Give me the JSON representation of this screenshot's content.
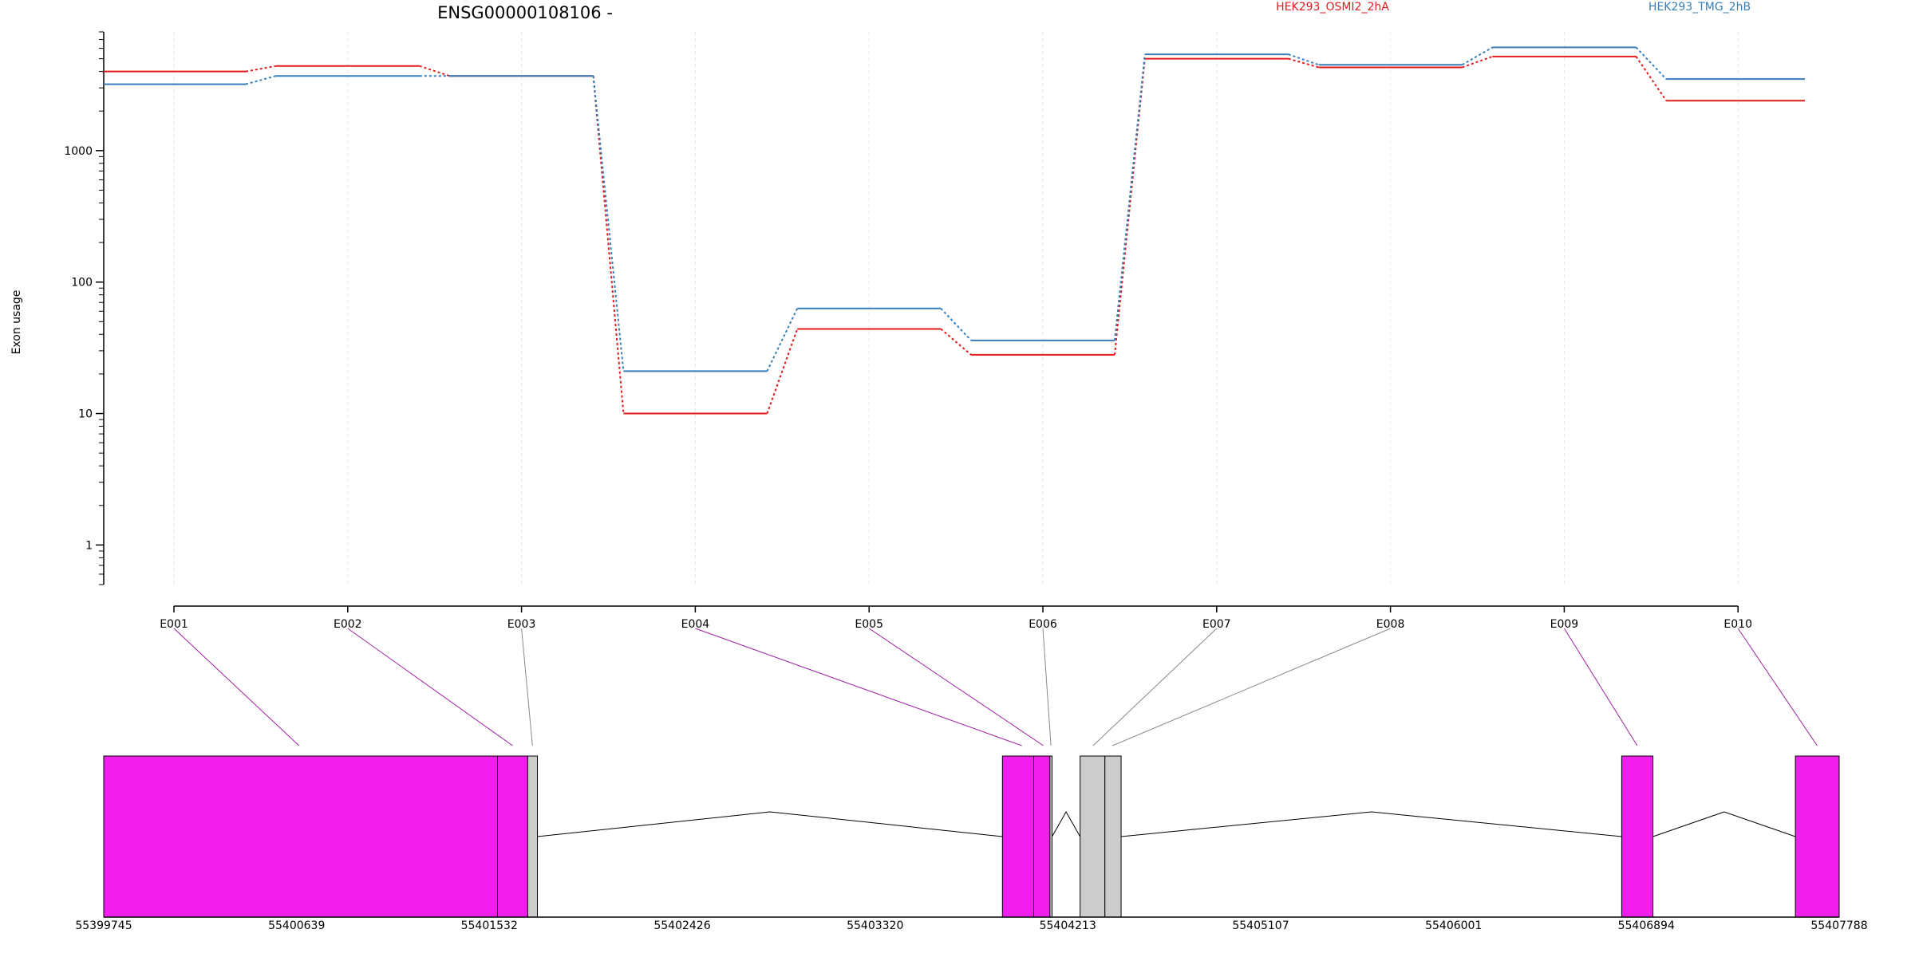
{
  "gene_title": "ENSG00000108106 -",
  "ylabel": "Exon usage",
  "legend": [
    {
      "name": "HEK293_OSMI2_2hA",
      "color": "#E41A1C"
    },
    {
      "name": "HEK293_TMG_2hB",
      "color": "#377EB8"
    }
  ],
  "chart_data": {
    "type": "line",
    "yscale": "log",
    "ylabel": "Exon usage",
    "ylim": [
      0.5,
      8000
    ],
    "yticks": [
      1,
      10,
      100,
      1000
    ],
    "exons": [
      "E001",
      "E002",
      "E003",
      "E004",
      "E005",
      "E006",
      "E007",
      "E008",
      "E009",
      "E010"
    ],
    "series": [
      {
        "name": "HEK293_OSMI2_2hA",
        "color": "#E41A1C",
        "values": [
          4000,
          4400,
          3700,
          10,
          44,
          28,
          5000,
          4300,
          5200,
          2400
        ]
      },
      {
        "name": "HEK293_TMG_2hB",
        "color": "#377EB8",
        "values": [
          3200,
          3700,
          3700,
          21,
          63,
          36,
          5400,
          4500,
          6100,
          3500
        ]
      }
    ],
    "genomic_ticks": [
      "55399745",
      "55400639",
      "55401532",
      "55402426",
      "55403320",
      "55404213",
      "55405107",
      "55406001",
      "55406894",
      "55407788"
    ],
    "gene_model": {
      "start": 55399745,
      "end": 55407788,
      "exon_blocks": [
        {
          "start": 55399745,
          "end": 55401570,
          "color": "#F21EEB"
        },
        {
          "start": 55401570,
          "end": 55401710,
          "color": "#F21EEB"
        },
        {
          "start": 55401710,
          "end": 55401755,
          "color": "#CCCCCC"
        },
        {
          "start": 55403910,
          "end": 55404055,
          "color": "#F21EEB"
        },
        {
          "start": 55404055,
          "end": 55404130,
          "color": "#F21EEB"
        },
        {
          "start": 55404130,
          "end": 55404140,
          "color": "#CCCCCC"
        },
        {
          "start": 55404270,
          "end": 55404385,
          "color": "#CCCCCC"
        },
        {
          "start": 55404385,
          "end": 55404460,
          "color": "#CCCCCC"
        },
        {
          "start": 55406780,
          "end": 55406925,
          "color": "#F21EEB"
        },
        {
          "start": 55407585,
          "end": 55407788,
          "color": "#F21EEB"
        }
      ],
      "introns": [
        {
          "start": 55401755,
          "end": 55403910
        },
        {
          "start": 55404140,
          "end": 55404270
        },
        {
          "start": 55404460,
          "end": 55406780
        },
        {
          "start": 55406925,
          "end": 55407585
        }
      ],
      "connections": [
        {
          "exon": 0,
          "target": 55400650,
          "color": "#A020A0"
        },
        {
          "exon": 1,
          "target": 55401640,
          "color": "#A020A0"
        },
        {
          "exon": 2,
          "target": 55401732,
          "color": "#888888"
        },
        {
          "exon": 3,
          "target": 55404000,
          "color": "#A020A0"
        },
        {
          "exon": 4,
          "target": 55404100,
          "color": "#A020A0"
        },
        {
          "exon": 5,
          "target": 55404135,
          "color": "#888888"
        },
        {
          "exon": 6,
          "target": 55404330,
          "color": "#888888"
        },
        {
          "exon": 7,
          "target": 55404420,
          "color": "#888888"
        },
        {
          "exon": 8,
          "target": 55406852,
          "color": "#A020A0"
        },
        {
          "exon": 9,
          "target": 55407686,
          "color": "#A020A0"
        }
      ]
    }
  }
}
